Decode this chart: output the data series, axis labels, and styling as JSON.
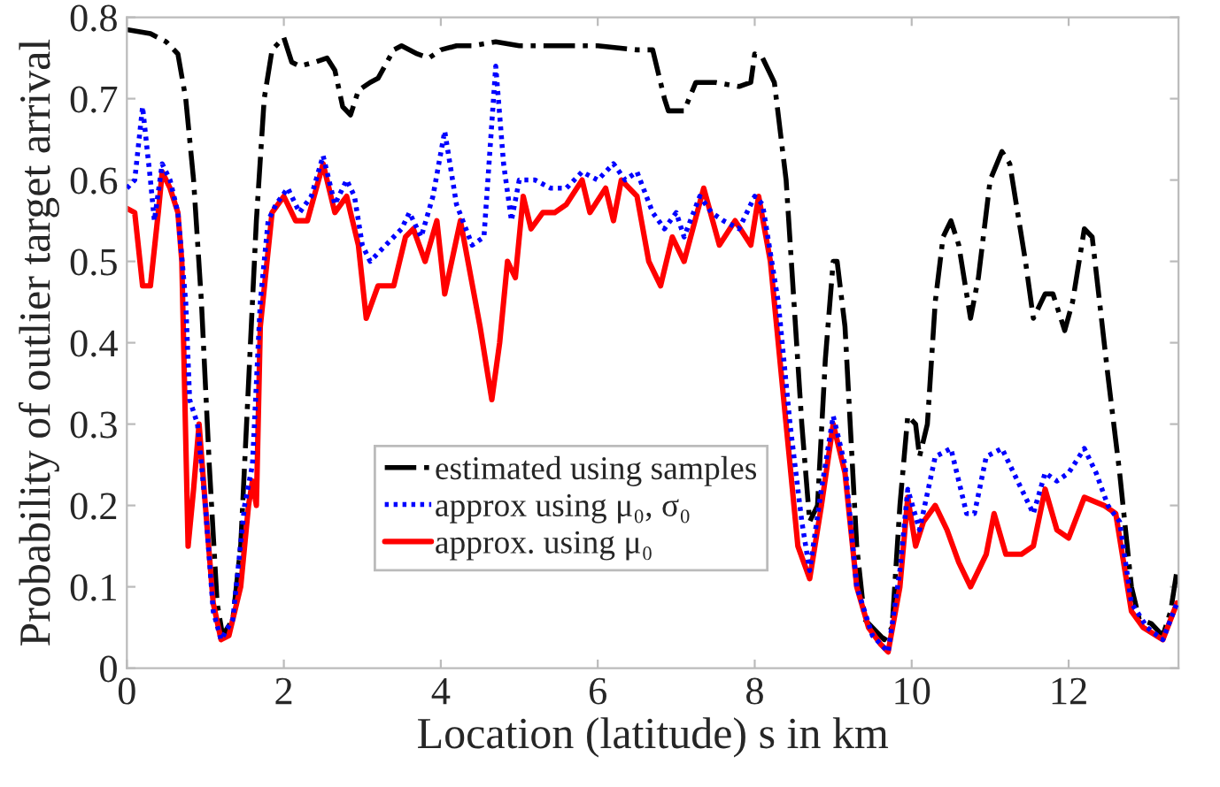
{
  "chart_data": {
    "type": "line",
    "xlabel": "Location (latitude) s in km",
    "ylabel": "Probability of outlier target arrival",
    "xlim": [
      0,
      13.4
    ],
    "ylim": [
      0,
      0.8
    ],
    "xticks": [
      0,
      2,
      4,
      6,
      8,
      10,
      12
    ],
    "yticks": [
      0,
      0.1,
      0.2,
      0.3,
      0.4,
      0.5,
      0.6,
      0.7,
      0.8
    ],
    "grid": false,
    "legend": "bottom",
    "marker": "none",
    "series": [
      {
        "name": "estimated using samples",
        "color": "#000000",
        "line_style": "dashdot",
        "x": [
          0,
          0.3,
          0.5,
          0.65,
          0.75,
          0.85,
          0.95,
          1.05,
          1.15,
          1.22,
          1.35,
          1.45,
          1.55,
          1.65,
          1.75,
          1.85,
          2.0,
          2.1,
          2.2,
          2.4,
          2.55,
          2.65,
          2.75,
          2.85,
          2.95,
          3.1,
          3.2,
          3.4,
          3.5,
          3.7,
          3.85,
          4.0,
          4.2,
          4.4,
          4.7,
          5.0,
          5.5,
          6.0,
          6.5,
          6.7,
          6.85,
          6.9,
          7.1,
          7.25,
          7.5,
          7.8,
          7.95,
          8.0,
          8.1,
          8.25,
          8.4,
          8.5,
          8.6,
          8.7,
          8.8,
          8.9,
          9.0,
          9.05,
          9.15,
          9.3,
          9.4,
          9.5,
          9.65,
          9.75,
          9.85,
          9.95,
          10.05,
          10.1,
          10.2,
          10.3,
          10.4,
          10.5,
          10.6,
          10.75,
          10.85,
          11.0,
          11.15,
          11.25,
          11.45,
          11.55,
          11.7,
          11.8,
          11.95,
          12.05,
          12.2,
          12.3,
          12.5,
          12.65,
          12.8,
          12.9,
          13.05,
          13.2,
          13.3,
          13.38
        ],
        "values": [
          0.785,
          0.78,
          0.77,
          0.755,
          0.7,
          0.6,
          0.45,
          0.25,
          0.08,
          0.04,
          0.06,
          0.15,
          0.35,
          0.55,
          0.7,
          0.76,
          0.775,
          0.745,
          0.74,
          0.745,
          0.75,
          0.735,
          0.69,
          0.68,
          0.71,
          0.72,
          0.725,
          0.76,
          0.765,
          0.755,
          0.75,
          0.76,
          0.765,
          0.765,
          0.77,
          0.765,
          0.765,
          0.765,
          0.76,
          0.76,
          0.7,
          0.685,
          0.685,
          0.72,
          0.72,
          0.715,
          0.72,
          0.755,
          0.75,
          0.72,
          0.6,
          0.45,
          0.3,
          0.18,
          0.2,
          0.38,
          0.5,
          0.5,
          0.42,
          0.15,
          0.06,
          0.05,
          0.035,
          0.05,
          0.2,
          0.31,
          0.3,
          0.26,
          0.3,
          0.45,
          0.53,
          0.55,
          0.52,
          0.43,
          0.48,
          0.6,
          0.635,
          0.62,
          0.5,
          0.43,
          0.46,
          0.46,
          0.415,
          0.45,
          0.54,
          0.53,
          0.36,
          0.24,
          0.1,
          0.06,
          0.055,
          0.04,
          0.07,
          0.12
        ]
      },
      {
        "name": "approx using μ₀, σ₀",
        "color": "#0000ff",
        "line_style": "dotted",
        "x": [
          0,
          0.1,
          0.2,
          0.3,
          0.35,
          0.45,
          0.55,
          0.65,
          0.75,
          0.8,
          0.9,
          1.0,
          1.1,
          1.2,
          1.35,
          1.5,
          1.6,
          1.7,
          1.8,
          1.9,
          2.05,
          2.2,
          2.35,
          2.5,
          2.65,
          2.8,
          2.9,
          3.0,
          3.1,
          3.3,
          3.5,
          3.6,
          3.75,
          3.9,
          4.05,
          4.2,
          4.4,
          4.55,
          4.7,
          4.8,
          4.9,
          5.0,
          5.2,
          5.4,
          5.6,
          5.8,
          6.0,
          6.2,
          6.35,
          6.5,
          6.7,
          6.85,
          7.0,
          7.1,
          7.3,
          7.45,
          7.6,
          7.8,
          8.0,
          8.1,
          8.3,
          8.45,
          8.6,
          8.7,
          8.85,
          9.0,
          9.15,
          9.3,
          9.5,
          9.7,
          9.85,
          9.95,
          10.1,
          10.3,
          10.5,
          10.7,
          10.8,
          10.95,
          11.15,
          11.35,
          11.55,
          11.7,
          11.85,
          12.0,
          12.2,
          12.35,
          12.5,
          12.65,
          12.8,
          13.0,
          13.2,
          13.38
        ],
        "values": [
          0.59,
          0.6,
          0.69,
          0.6,
          0.55,
          0.62,
          0.6,
          0.56,
          0.45,
          0.33,
          0.3,
          0.2,
          0.07,
          0.035,
          0.06,
          0.2,
          0.25,
          0.45,
          0.55,
          0.57,
          0.59,
          0.56,
          0.58,
          0.63,
          0.57,
          0.6,
          0.58,
          0.52,
          0.5,
          0.52,
          0.54,
          0.56,
          0.53,
          0.58,
          0.66,
          0.57,
          0.52,
          0.53,
          0.74,
          0.62,
          0.55,
          0.6,
          0.6,
          0.59,
          0.59,
          0.61,
          0.6,
          0.62,
          0.6,
          0.61,
          0.56,
          0.54,
          0.56,
          0.53,
          0.58,
          0.56,
          0.55,
          0.54,
          0.58,
          0.57,
          0.45,
          0.3,
          0.18,
          0.12,
          0.22,
          0.31,
          0.25,
          0.1,
          0.04,
          0.02,
          0.12,
          0.22,
          0.17,
          0.26,
          0.27,
          0.19,
          0.19,
          0.26,
          0.27,
          0.23,
          0.19,
          0.24,
          0.23,
          0.24,
          0.27,
          0.24,
          0.2,
          0.18,
          0.08,
          0.05,
          0.035,
          0.08
        ]
      },
      {
        "name": "approx. using μ₀",
        "color": "#ff0000",
        "line_style": "solid",
        "x": [
          0,
          0.1,
          0.2,
          0.3,
          0.4,
          0.45,
          0.55,
          0.65,
          0.7,
          0.78,
          0.85,
          0.92,
          1.0,
          1.1,
          1.2,
          1.3,
          1.45,
          1.55,
          1.6,
          1.65,
          1.7,
          1.85,
          2.0,
          2.15,
          2.3,
          2.5,
          2.65,
          2.8,
          2.95,
          3.05,
          3.2,
          3.4,
          3.55,
          3.65,
          3.8,
          3.95,
          4.05,
          4.25,
          4.5,
          4.65,
          4.75,
          4.85,
          4.95,
          5.05,
          5.15,
          5.3,
          5.45,
          5.6,
          5.8,
          5.9,
          6.1,
          6.2,
          6.3,
          6.5,
          6.65,
          6.8,
          6.95,
          7.1,
          7.35,
          7.55,
          7.75,
          7.95,
          8.05,
          8.2,
          8.4,
          8.55,
          8.7,
          8.85,
          9.0,
          9.15,
          9.3,
          9.45,
          9.6,
          9.7,
          9.85,
          9.95,
          10.05,
          10.15,
          10.3,
          10.45,
          10.6,
          10.75,
          10.95,
          11.05,
          11.2,
          11.4,
          11.55,
          11.7,
          11.85,
          12.0,
          12.2,
          12.45,
          12.6,
          12.8,
          12.95,
          13.2,
          13.38
        ],
        "values": [
          0.565,
          0.56,
          0.47,
          0.47,
          0.56,
          0.61,
          0.59,
          0.56,
          0.5,
          0.15,
          0.22,
          0.3,
          0.2,
          0.08,
          0.035,
          0.04,
          0.1,
          0.2,
          0.23,
          0.2,
          0.42,
          0.56,
          0.58,
          0.55,
          0.55,
          0.62,
          0.56,
          0.58,
          0.52,
          0.43,
          0.47,
          0.47,
          0.53,
          0.54,
          0.5,
          0.55,
          0.46,
          0.55,
          0.42,
          0.33,
          0.4,
          0.5,
          0.48,
          0.58,
          0.54,
          0.56,
          0.56,
          0.57,
          0.6,
          0.56,
          0.59,
          0.55,
          0.6,
          0.58,
          0.5,
          0.47,
          0.53,
          0.5,
          0.59,
          0.52,
          0.55,
          0.52,
          0.58,
          0.5,
          0.3,
          0.15,
          0.11,
          0.2,
          0.3,
          0.24,
          0.1,
          0.05,
          0.03,
          0.02,
          0.1,
          0.21,
          0.15,
          0.18,
          0.2,
          0.17,
          0.13,
          0.1,
          0.14,
          0.19,
          0.14,
          0.14,
          0.15,
          0.22,
          0.17,
          0.16,
          0.21,
          0.2,
          0.19,
          0.07,
          0.05,
          0.035,
          0.08
        ]
      }
    ]
  }
}
